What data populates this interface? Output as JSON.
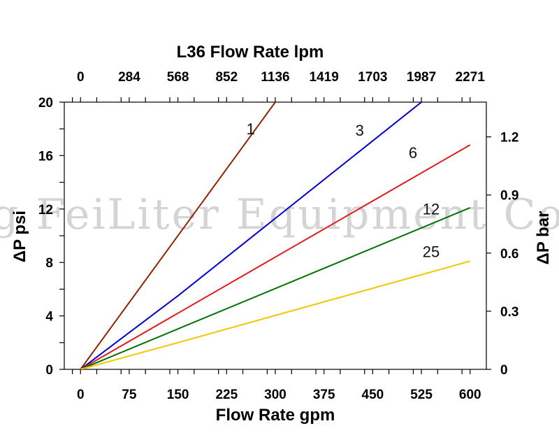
{
  "chart_data": {
    "type": "line",
    "title": "L36  Flow Rate lpm",
    "xlabel": "Flow Rate gpm",
    "ylabel": "ΔP psi",
    "y2label": "ΔP bar",
    "xlim": [
      -25,
      625
    ],
    "ylim": [
      0,
      20
    ],
    "x_ticks": [
      "0",
      "75",
      "150",
      "225",
      "300",
      "375",
      "450",
      "525",
      "600"
    ],
    "x_top_ticks": [
      "0",
      "284",
      "568",
      "852",
      "1136",
      "1419",
      "1703",
      "1987",
      "2271"
    ],
    "y_ticks": [
      "0",
      "4",
      "8",
      "12",
      "16",
      "20"
    ],
    "y2_ticks": [
      "0",
      "0.3",
      "0.6",
      "0.9",
      "1.2"
    ],
    "y2_tick_values_psi": [
      0,
      4.35,
      8.7,
      13.05,
      17.4
    ],
    "grid": false,
    "legend": "inline labels",
    "series": [
      {
        "name": "1",
        "color": "#8B2500",
        "x": [
          0,
          300
        ],
        "y": [
          0,
          20
        ],
        "label_at": [
          262,
          17.6
        ]
      },
      {
        "name": "3",
        "color": "#0000CC",
        "x": [
          0,
          150,
          525
        ],
        "y": [
          0,
          5.5,
          20
        ],
        "label_at": [
          430,
          17.5
        ]
      },
      {
        "name": "6",
        "color": "#E01B1B",
        "x": [
          0,
          600
        ],
        "y": [
          0,
          16.8
        ],
        "label_at": [
          512,
          15.8
        ]
      },
      {
        "name": "12",
        "color": "#007000",
        "x": [
          0,
          600
        ],
        "y": [
          0,
          12.1
        ],
        "label_at": [
          540,
          11.6
        ]
      },
      {
        "name": "25",
        "color": "#F0C800",
        "x": [
          0,
          150,
          600
        ],
        "y": [
          0,
          2,
          8.1
        ],
        "label_at": [
          540,
          8.4
        ]
      }
    ]
  },
  "watermark": "g FeiLiter Equipment Co"
}
